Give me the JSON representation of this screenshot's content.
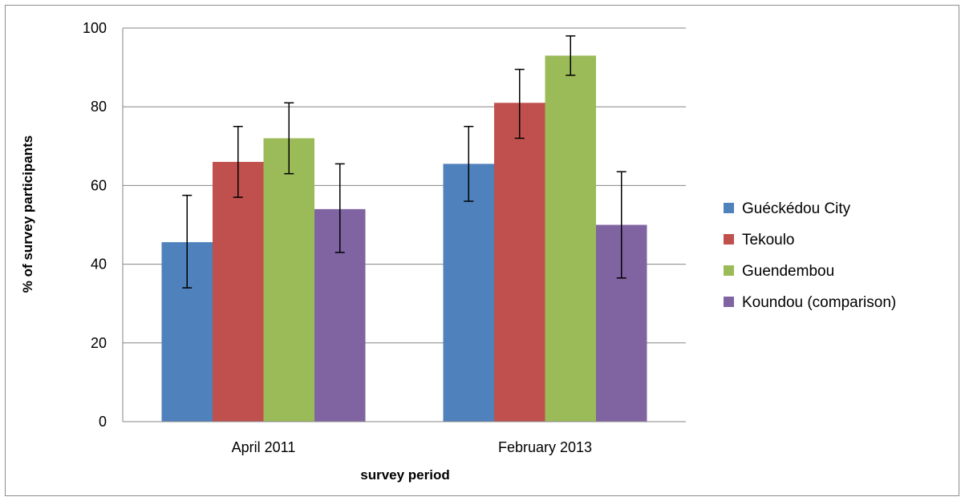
{
  "chart_data": {
    "type": "bar",
    "title": "",
    "xlabel": "survey period",
    "ylabel": "% of survey participants",
    "ylim": [
      0,
      100
    ],
    "yticks": [
      "0",
      "20",
      "40",
      "60",
      "80",
      "100"
    ],
    "categories": [
      "April 2011",
      "February 2013"
    ],
    "grid": true,
    "legend_position": "right",
    "series": [
      {
        "name": "Guéckédou City",
        "color": "#4f81bd",
        "values": [
          45.6,
          65.5
        ],
        "error_low": [
          34,
          56
        ],
        "error_high": [
          57.5,
          75
        ]
      },
      {
        "name": "Tekoulo",
        "color": "#c0504d",
        "values": [
          66,
          81
        ],
        "error_low": [
          57,
          72
        ],
        "error_high": [
          75,
          89.5
        ]
      },
      {
        "name": "Guendembou",
        "color": "#9bbb59",
        "values": [
          72,
          93
        ],
        "error_low": [
          63,
          88
        ],
        "error_high": [
          81,
          98
        ]
      },
      {
        "name": "Koundou (comparison)",
        "color": "#8064a2",
        "values": [
          54,
          50
        ],
        "error_low": [
          43,
          36.5
        ],
        "error_high": [
          65.5,
          63.5
        ]
      }
    ]
  }
}
